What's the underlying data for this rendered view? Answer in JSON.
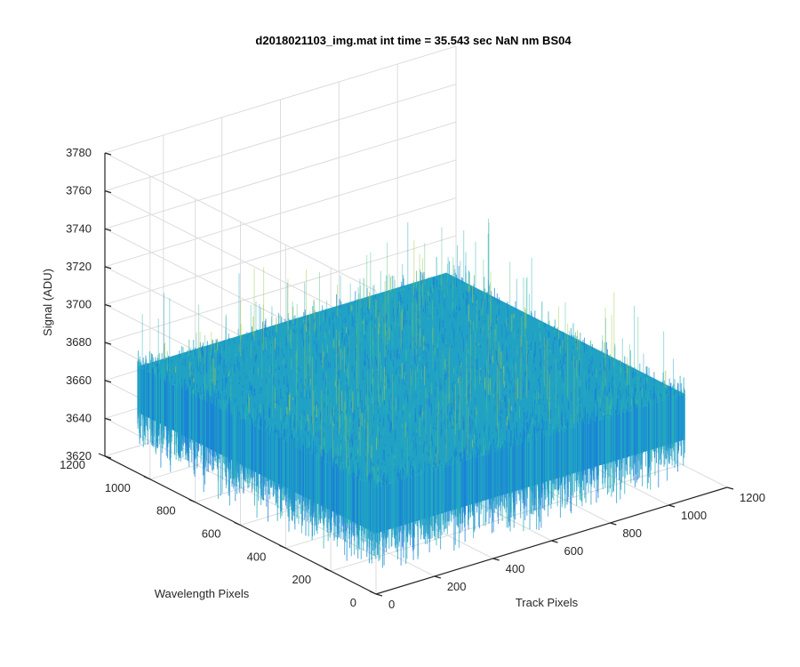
{
  "chart_data": {
    "type": "surface",
    "title": "d2018021103_img.mat int time = 35.543 sec  NaN nm BS04",
    "xlabel": "Track Pixels",
    "ylabel": "Wavelength Pixels",
    "zlabel": "Signal (ADU)",
    "xlim": [
      0,
      1200
    ],
    "ylim": [
      0,
      1200
    ],
    "zlim": [
      3620,
      3780
    ],
    "xticks": [
      "0",
      "200",
      "400",
      "600",
      "800",
      "1000",
      "1200"
    ],
    "yticks": [
      "0",
      "200",
      "400",
      "600",
      "800",
      "1000",
      "1200"
    ],
    "zticks": [
      "3620",
      "3640",
      "3660",
      "3680",
      "3700",
      "3720",
      "3740",
      "3760",
      "3780"
    ],
    "grid": true,
    "surface": {
      "x_range": [
        0,
        1056
      ],
      "y_range": [
        0,
        1056
      ],
      "mean_signal": 3668,
      "noise_range": [
        3640,
        3720
      ],
      "colormap": "parula",
      "dominant_colors": [
        "#1a7fd8",
        "#1fa0c8",
        "#26b0b8",
        "#53bf8a",
        "#9cc64a"
      ]
    }
  }
}
